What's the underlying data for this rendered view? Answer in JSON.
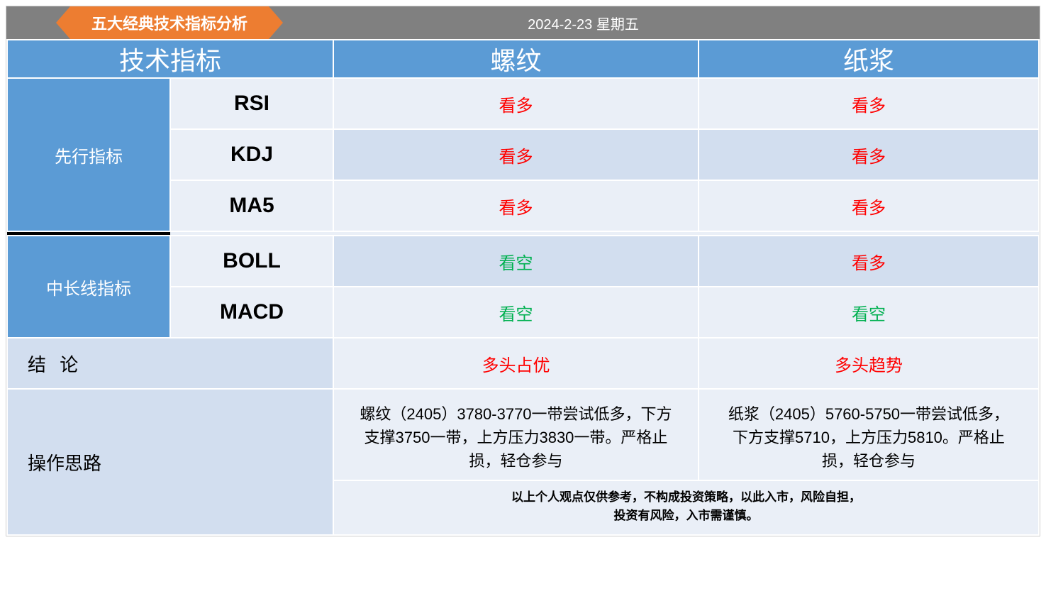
{
  "header": {
    "title": "五大经典技术指标分析",
    "date": "2024-2-23 星期五",
    "title_bg": "#ed7d31",
    "bar_bg": "#808080"
  },
  "colors": {
    "header_blue": "#5b9bd5",
    "row_even": "#eaeff7",
    "row_odd": "#d2deef",
    "bullish": "#ff0000",
    "bearish": "#00b050"
  },
  "columns": {
    "c0": "技术指标",
    "c1": "螺纹",
    "c2": "纸浆"
  },
  "groups": {
    "leading": "先行指标",
    "midlong": "中长线指标"
  },
  "indicators": {
    "rsi": {
      "name": "RSI",
      "col1": "看多",
      "col1_type": "bullish",
      "col2": "看多",
      "col2_type": "bullish"
    },
    "kdj": {
      "name": "KDJ",
      "col1": "看多",
      "col1_type": "bullish",
      "col2": "看多",
      "col2_type": "bullish"
    },
    "ma5": {
      "name": "MA5",
      "col1": "看多",
      "col1_type": "bullish",
      "col2": "看多",
      "col2_type": "bullish"
    },
    "boll": {
      "name": "BOLL",
      "col1": "看空",
      "col1_type": "bearish",
      "col2": "看多",
      "col2_type": "bullish"
    },
    "macd": {
      "name": "MACD",
      "col1": "看空",
      "col1_type": "bearish",
      "col2": "看空",
      "col2_type": "bearish"
    }
  },
  "conclusion": {
    "label": "结 论",
    "col1": "多头占优",
    "col2": "多头趋势"
  },
  "strategy": {
    "label": "操作思路",
    "col1": "螺纹（2405）3780-3770一带尝试低多，下方支撑3750一带，上方压力3830一带。严格止损，轻仓参与",
    "col2": "纸浆（2405）5760-5750一带尝试低多，下方支撑5710，上方压力5810。严格止损，轻仓参与"
  },
  "disclaimer": {
    "line1": "以上个人观点仅供参考，不构成投资策略，以此入市，风险自担，",
    "line2": "投资有风险，入市需谨慎。"
  }
}
